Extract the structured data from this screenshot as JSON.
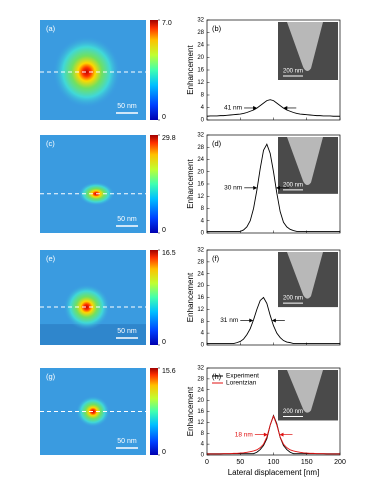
{
  "chart_data": [
    {
      "type": "heatmap",
      "panel_label": "(a)",
      "colorbar_lim": [
        0,
        7
      ],
      "colorbar_ticks": [
        {
          "value": 7,
          "label": "7.0"
        },
        0
      ],
      "scale_bar_label": "50 nm"
    },
    {
      "type": "line",
      "panel_label": "(b)",
      "ylabel": "Enhancement",
      "annotation": "41 nm",
      "annotation_color": "#000000",
      "inset_scale_label": "200 nm",
      "x": [
        0,
        5,
        10,
        15,
        20,
        25,
        30,
        35,
        40,
        45,
        50,
        55,
        60,
        65,
        70,
        75,
        80,
        85,
        90,
        95,
        100,
        105,
        110,
        115,
        120,
        125,
        130,
        135,
        140,
        145,
        150,
        155,
        160,
        165,
        170,
        175,
        180,
        185,
        190,
        195,
        200
      ],
      "series": [
        {
          "color": "#000000",
          "values": [
            1.2,
            1.3,
            1.3,
            1.3,
            1.4,
            1.4,
            1.5,
            1.6,
            1.7,
            1.8,
            1.9,
            2.1,
            2.4,
            2.8,
            3.2,
            3.8,
            4.6,
            5.4,
            6.2,
            6.5,
            6.2,
            5.4,
            4.6,
            3.8,
            3.2,
            2.8,
            2.4,
            2.1,
            1.9,
            1.8,
            1.7,
            1.6,
            1.5,
            1.4,
            1.4,
            1.3,
            1.3,
            1.3,
            1.2,
            1.2,
            1.2
          ]
        }
      ],
      "xlim": [
        0,
        200
      ],
      "ylim": [
        0,
        32
      ],
      "xticks": [
        0,
        50,
        100,
        150,
        200
      ],
      "yticks": [
        0,
        4,
        8,
        12,
        16,
        20,
        24,
        28,
        32
      ]
    },
    {
      "type": "heatmap",
      "panel_label": "(c)",
      "colorbar_lim": [
        0,
        29.8
      ],
      "colorbar_ticks": [
        29.8,
        0
      ],
      "scale_bar_label": "50 nm"
    },
    {
      "type": "line",
      "panel_label": "(d)",
      "ylabel": "Enhancement",
      "annotation": "30 nm",
      "annotation_color": "#000000",
      "inset_scale_label": "200 nm",
      "x": [
        0,
        5,
        10,
        15,
        20,
        25,
        30,
        35,
        40,
        45,
        50,
        55,
        60,
        65,
        70,
        75,
        80,
        85,
        90,
        95,
        100,
        105,
        110,
        115,
        120,
        125,
        130,
        135,
        140,
        145,
        150,
        155,
        160,
        165,
        170,
        175,
        180,
        185,
        190,
        195,
        200
      ],
      "series": [
        {
          "color": "#000000",
          "values": [
            0.5,
            0.5,
            0.5,
            0.5,
            0.5,
            0.5,
            0.5,
            0.5,
            0.5,
            0.5,
            0.5,
            1,
            2,
            4,
            8,
            14,
            21,
            27,
            29,
            26,
            20,
            13,
            7,
            3.5,
            2,
            1.2,
            0.8,
            0.5,
            0.5,
            0.5,
            0.5,
            0.5,
            0.5,
            0.5,
            0.5,
            0.5,
            0.5,
            0.5,
            0.5,
            0.5,
            0.5
          ]
        }
      ],
      "xlim": [
        0,
        200
      ],
      "ylim": [
        0,
        32
      ],
      "xticks": [
        0,
        50,
        100,
        150,
        200
      ],
      "yticks": [
        0,
        4,
        8,
        12,
        16,
        20,
        24,
        28,
        32
      ]
    },
    {
      "type": "heatmap",
      "panel_label": "(e)",
      "colorbar_lim": [
        0,
        16.5
      ],
      "colorbar_ticks": [
        16.5,
        0
      ],
      "scale_bar_label": "50 nm"
    },
    {
      "type": "line",
      "panel_label": "(f)",
      "ylabel": "Enhancement",
      "annotation": "31 nm",
      "annotation_color": "#000000",
      "inset_scale_label": "200 nm",
      "x": [
        0,
        5,
        10,
        15,
        20,
        25,
        30,
        35,
        40,
        45,
        50,
        55,
        60,
        65,
        70,
        75,
        80,
        85,
        90,
        95,
        100,
        105,
        110,
        115,
        120,
        125,
        130,
        135,
        140,
        145,
        150,
        155,
        160,
        165,
        170,
        175,
        180,
        185,
        190,
        195,
        200
      ],
      "series": [
        {
          "color": "#000000",
          "values": [
            0.5,
            0.5,
            0.5,
            0.5,
            0.5,
            0.5,
            0.5,
            0.5,
            0.5,
            0.8,
            1.2,
            2,
            3.5,
            5.5,
            8.5,
            12,
            15,
            16,
            14,
            10,
            6.5,
            4,
            2.5,
            1.5,
            1,
            0.8,
            0.5,
            0.5,
            0.5,
            0.5,
            0.5,
            0.5,
            0.5,
            0.5,
            0.5,
            0.5,
            0.5,
            0.5,
            0.5,
            0.5,
            0.5
          ]
        }
      ],
      "xlim": [
        0,
        200
      ],
      "ylim": [
        0,
        32
      ],
      "xticks": [
        0,
        50,
        100,
        150,
        200
      ],
      "yticks": [
        0,
        4,
        8,
        12,
        16,
        20,
        24,
        28,
        32
      ]
    },
    {
      "type": "heatmap",
      "panel_label": "(g)",
      "colorbar_lim": [
        0,
        15.6
      ],
      "colorbar_ticks": [
        15.6,
        0
      ],
      "scale_bar_label": "50 nm"
    },
    {
      "type": "line",
      "panel_label": "(h)",
      "ylabel": "Enhancement",
      "xlabel": "Lateral displacement [nm]",
      "annotation": "18 nm",
      "annotation_color": "#e01010",
      "inset_scale_label": "200 nm",
      "legend": "upper left",
      "x": [
        0,
        5,
        10,
        15,
        20,
        25,
        30,
        35,
        40,
        45,
        50,
        55,
        60,
        65,
        70,
        75,
        80,
        85,
        90,
        95,
        100,
        105,
        110,
        115,
        120,
        125,
        130,
        135,
        140,
        145,
        150,
        155,
        160,
        165,
        170,
        175,
        180,
        185,
        190,
        195,
        200
      ],
      "series": [
        {
          "name": "Experiment",
          "color": "#000000",
          "values": [
            0.5,
            0.5,
            0.5,
            0.5,
            0.5,
            0.5,
            0.5,
            0.5,
            0.5,
            0.5,
            0.5,
            0.5,
            0.5,
            0.5,
            0.5,
            1,
            2,
            3.5,
            6,
            11,
            14.5,
            11.5,
            6.5,
            3.5,
            2,
            1,
            0.5,
            0.5,
            0.5,
            0.5,
            0.5,
            0.5,
            0.5,
            0.5,
            0.5,
            0.5,
            0.5,
            0.5,
            0.5,
            0.5,
            0.5
          ]
        },
        {
          "name": "Lorentzian",
          "color": "#e01010",
          "values": [
            0.4,
            0.4,
            0.4,
            0.4,
            0.4,
            0.5,
            0.5,
            0.5,
            0.6,
            0.6,
            0.7,
            0.8,
            1.0,
            1.2,
            1.5,
            1.9,
            2.7,
            4.0,
            6.6,
            11.0,
            14.3,
            11.0,
            6.6,
            4.0,
            2.7,
            1.9,
            1.5,
            1.2,
            1.0,
            0.8,
            0.7,
            0.6,
            0.6,
            0.5,
            0.5,
            0.5,
            0.4,
            0.4,
            0.4,
            0.4,
            0.4
          ]
        }
      ],
      "xlim": [
        0,
        200
      ],
      "ylim": [
        0,
        32
      ],
      "xticks": [
        0,
        50,
        100,
        150,
        200
      ],
      "yticks": [
        0,
        4,
        8,
        12,
        16,
        20,
        24,
        28,
        32
      ]
    }
  ]
}
